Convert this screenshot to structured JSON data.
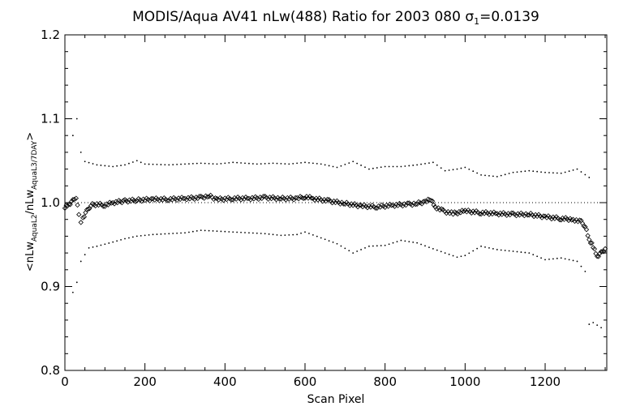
{
  "chart_data": {
    "type": "scatter",
    "title": {
      "prefix": "MODIS/Aqua AV41 nLw(488) Ratio for 2003 080 ",
      "sigma_symbol": "σ",
      "sigma_subscript": "1",
      "sigma_value": "=0.0139"
    },
    "xlabel": "Scan Pixel",
    "ylabel": {
      "open": "<nLw",
      "sub1": "AquaL2",
      "mid": "/nLw",
      "sub2": "AquaL3/7DAY",
      "close": ">"
    },
    "xlim": [
      0,
      1354
    ],
    "ylim": [
      0.8,
      1.2
    ],
    "x_ticks": [
      {
        "value": 0,
        "label": "0"
      },
      {
        "value": 200,
        "label": "200"
      },
      {
        "value": 400,
        "label": "400"
      },
      {
        "value": 600,
        "label": "600"
      },
      {
        "value": 800,
        "label": "800"
      },
      {
        "value": 1000,
        "label": "1000"
      },
      {
        "value": 1200,
        "label": "1200"
      }
    ],
    "y_ticks": [
      {
        "value": 0.8,
        "label": "0.8"
      },
      {
        "value": 0.9,
        "label": "0.9"
      },
      {
        "value": 1.0,
        "label": "1.0"
      },
      {
        "value": 1.1,
        "label": "1.1"
      },
      {
        "value": 1.2,
        "label": "1.2"
      }
    ],
    "reference_line": 1.0,
    "grid": false,
    "series": [
      {
        "role": "mean",
        "marker": "diamond",
        "points": [
          [
            0,
            0.995
          ],
          [
            10,
            0.998
          ],
          [
            20,
            1.002
          ],
          [
            28,
            1.006
          ],
          [
            35,
            0.985
          ],
          [
            40,
            0.978
          ],
          [
            45,
            0.982
          ],
          [
            55,
            0.99
          ],
          [
            65,
            0.997
          ],
          [
            80,
            0.998
          ],
          [
            100,
            0.997
          ],
          [
            120,
            1.0
          ],
          [
            150,
            1.002
          ],
          [
            180,
            1.003
          ],
          [
            220,
            1.004
          ],
          [
            260,
            1.004
          ],
          [
            300,
            1.005
          ],
          [
            340,
            1.006
          ],
          [
            360,
            1.008
          ],
          [
            380,
            1.004
          ],
          [
            420,
            1.005
          ],
          [
            460,
            1.005
          ],
          [
            500,
            1.006
          ],
          [
            540,
            1.005
          ],
          [
            580,
            1.005
          ],
          [
            600,
            1.007
          ],
          [
            620,
            1.005
          ],
          [
            660,
            1.002
          ],
          [
            700,
            0.999
          ],
          [
            740,
            0.996
          ],
          [
            780,
            0.995
          ],
          [
            820,
            0.997
          ],
          [
            860,
            0.998
          ],
          [
            880,
            0.999
          ],
          [
            900,
            1.001
          ],
          [
            915,
            1.004
          ],
          [
            925,
            0.995
          ],
          [
            945,
            0.99
          ],
          [
            970,
            0.987
          ],
          [
            1000,
            0.99
          ],
          [
            1040,
            0.988
          ],
          [
            1080,
            0.987
          ],
          [
            1120,
            0.986
          ],
          [
            1160,
            0.986
          ],
          [
            1200,
            0.983
          ],
          [
            1240,
            0.981
          ],
          [
            1270,
            0.98
          ],
          [
            1290,
            0.977
          ],
          [
            1300,
            0.972
          ],
          [
            1310,
            0.955
          ],
          [
            1320,
            0.948
          ],
          [
            1330,
            0.936
          ],
          [
            1340,
            0.94
          ],
          [
            1350,
            0.945
          ]
        ]
      },
      {
        "role": "upper",
        "marker": "dot",
        "points": [
          [
            20,
            1.08
          ],
          [
            30,
            1.1
          ],
          [
            40,
            1.06
          ],
          [
            50,
            1.049
          ],
          [
            80,
            1.045
          ],
          [
            120,
            1.043
          ],
          [
            150,
            1.045
          ],
          [
            180,
            1.05
          ],
          [
            200,
            1.046
          ],
          [
            260,
            1.045
          ],
          [
            300,
            1.046
          ],
          [
            340,
            1.047
          ],
          [
            380,
            1.046
          ],
          [
            420,
            1.048
          ],
          [
            480,
            1.046
          ],
          [
            520,
            1.047
          ],
          [
            560,
            1.046
          ],
          [
            600,
            1.048
          ],
          [
            640,
            1.046
          ],
          [
            680,
            1.042
          ],
          [
            720,
            1.049
          ],
          [
            760,
            1.04
          ],
          [
            800,
            1.043
          ],
          [
            840,
            1.043
          ],
          [
            880,
            1.045
          ],
          [
            920,
            1.048
          ],
          [
            950,
            1.038
          ],
          [
            980,
            1.04
          ],
          [
            1000,
            1.042
          ],
          [
            1040,
            1.033
          ],
          [
            1080,
            1.031
          ],
          [
            1120,
            1.036
          ],
          [
            1160,
            1.038
          ],
          [
            1200,
            1.036
          ],
          [
            1240,
            1.035
          ],
          [
            1280,
            1.04
          ],
          [
            1310,
            1.03
          ]
        ]
      },
      {
        "role": "lower",
        "marker": "dot",
        "points": [
          [
            20,
            0.893
          ],
          [
            30,
            0.905
          ],
          [
            40,
            0.93
          ],
          [
            60,
            0.946
          ],
          [
            80,
            0.948
          ],
          [
            120,
            0.953
          ],
          [
            150,
            0.957
          ],
          [
            180,
            0.96
          ],
          [
            220,
            0.962
          ],
          [
            260,
            0.963
          ],
          [
            300,
            0.964
          ],
          [
            340,
            0.967
          ],
          [
            380,
            0.966
          ],
          [
            420,
            0.965
          ],
          [
            460,
            0.964
          ],
          [
            500,
            0.963
          ],
          [
            540,
            0.961
          ],
          [
            580,
            0.962
          ],
          [
            600,
            0.965
          ],
          [
            640,
            0.958
          ],
          [
            680,
            0.951
          ],
          [
            720,
            0.94
          ],
          [
            760,
            0.948
          ],
          [
            800,
            0.949
          ],
          [
            840,
            0.955
          ],
          [
            880,
            0.952
          ],
          [
            920,
            0.945
          ],
          [
            950,
            0.94
          ],
          [
            980,
            0.935
          ],
          [
            1000,
            0.937
          ],
          [
            1040,
            0.948
          ],
          [
            1080,
            0.944
          ],
          [
            1120,
            0.942
          ],
          [
            1160,
            0.94
          ],
          [
            1200,
            0.932
          ],
          [
            1240,
            0.934
          ],
          [
            1280,
            0.93
          ],
          [
            1300,
            0.918
          ],
          [
            1310,
            0.855
          ],
          [
            1320,
            0.857
          ],
          [
            1340,
            0.851
          ]
        ]
      }
    ]
  }
}
